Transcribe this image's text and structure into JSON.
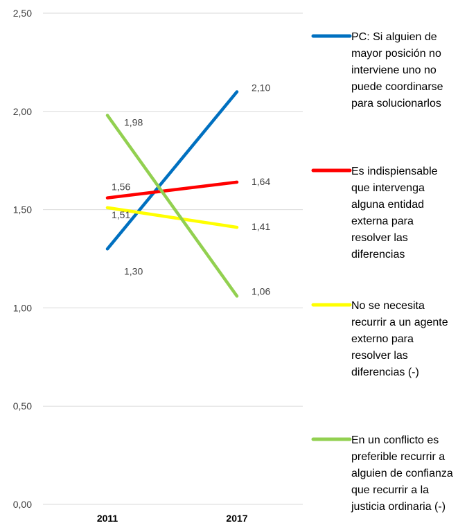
{
  "chart_data": {
    "type": "line",
    "categories": [
      "2011",
      "2017"
    ],
    "ylim": [
      0,
      2.5
    ],
    "yticks": [
      "0,00",
      "0,50",
      "1,00",
      "1,50",
      "2,00",
      "2,50"
    ],
    "grid": true,
    "legend_position": "right",
    "series": [
      {
        "name": "PC: Si alguien de mayor posición no interviene uno no puede coordinarse para solucionarlos",
        "legend_lines": [
          "PC: Si alguien de",
          "mayor posición no",
          "interviene uno no",
          "puede coordinarse",
          "para solucionarlos"
        ],
        "color": "#0070C0",
        "values": [
          1.3,
          2.1
        ],
        "labels": [
          "1,30",
          "2,10"
        ]
      },
      {
        "name": "Es indispiensable que intervenga alguna entidad externa para resolver las diferencias",
        "legend_lines": [
          "Es indispiensable",
          "que intervenga",
          "alguna entidad",
          "externa para",
          "resolver las",
          "diferencias"
        ],
        "color": "#FF0000",
        "values": [
          1.56,
          1.64
        ],
        "labels": [
          "1,56",
          "1,64"
        ]
      },
      {
        "name": "No se necesita recurrir a un agente externo para resolver las diferencias (-)",
        "legend_lines": [
          "No se necesita",
          "recurrir a un agente",
          "externo para",
          "resolver las",
          "diferencias (-)"
        ],
        "color": "#FFFF00",
        "values": [
          1.51,
          1.41
        ],
        "labels": [
          "1,51",
          "1,41"
        ]
      },
      {
        "name": "En un conflicto es preferible recurrir a alguien de confianza que recurrir a la justicia ordinaria (-)",
        "legend_lines": [
          "En un conflicto es",
          "preferible recurrir a",
          "alguien de confianza",
          "que recurrir a la",
          "justicia ordinaria (-)"
        ],
        "color": "#92D050",
        "values": [
          1.98,
          1.06
        ],
        "labels": [
          "1,98",
          "1,06"
        ]
      }
    ]
  }
}
